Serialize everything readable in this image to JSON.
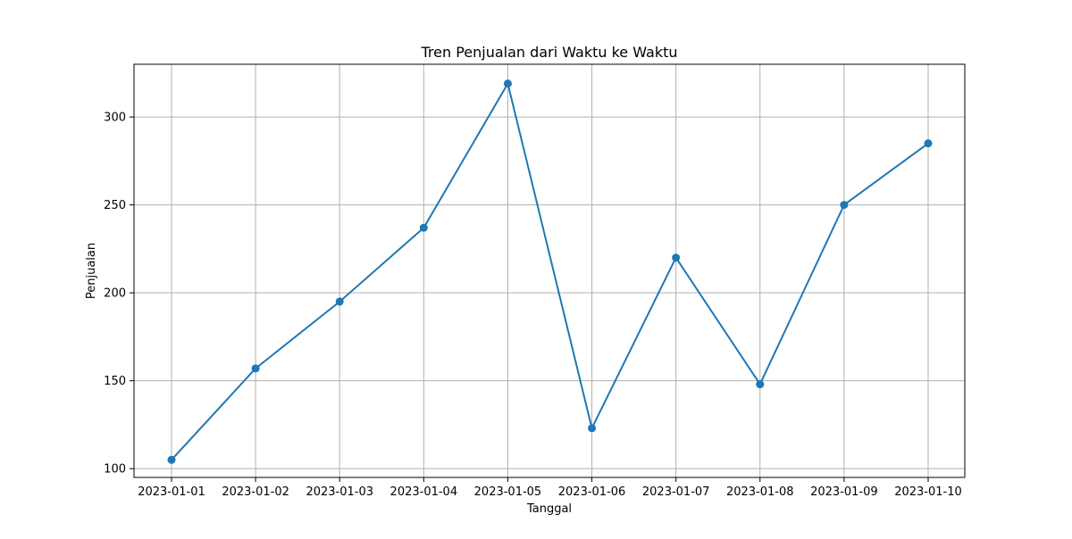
{
  "chart_data": {
    "type": "line",
    "title": "Tren Penjualan dari Waktu ke Waktu",
    "xlabel": "Tanggal",
    "ylabel": "Penjualan",
    "categories": [
      "2023-01-01",
      "2023-01-02",
      "2023-01-03",
      "2023-01-04",
      "2023-01-05",
      "2023-01-06",
      "2023-01-07",
      "2023-01-08",
      "2023-01-09",
      "2023-01-10"
    ],
    "series": [
      {
        "values": [
          105,
          157,
          195,
          237,
          319,
          123,
          220,
          148,
          250,
          285
        ]
      }
    ],
    "ylim": [
      95,
      330
    ],
    "yticks": [
      100,
      150,
      200,
      250,
      300
    ],
    "grid": true,
    "marker": "circle",
    "colors": {
      "line": "#1f77b4",
      "grid": "#b0b0b0",
      "axes": "#000000"
    }
  }
}
